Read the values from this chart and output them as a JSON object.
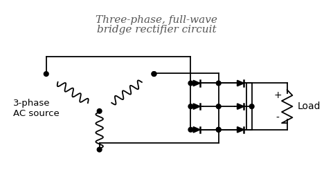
{
  "title_line1": "Three-phase, full-wave",
  "title_line2": "bridge rectifier circuit",
  "title_fontsize": 11,
  "title_style": "italic",
  "label_3phase": "3-phase\nAC source",
  "label_load": "Load",
  "line_color": "#000000",
  "bg_color": "#ffffff",
  "dot_color": "#000000",
  "figsize": [
    4.68,
    2.65
  ],
  "dpi": 100
}
